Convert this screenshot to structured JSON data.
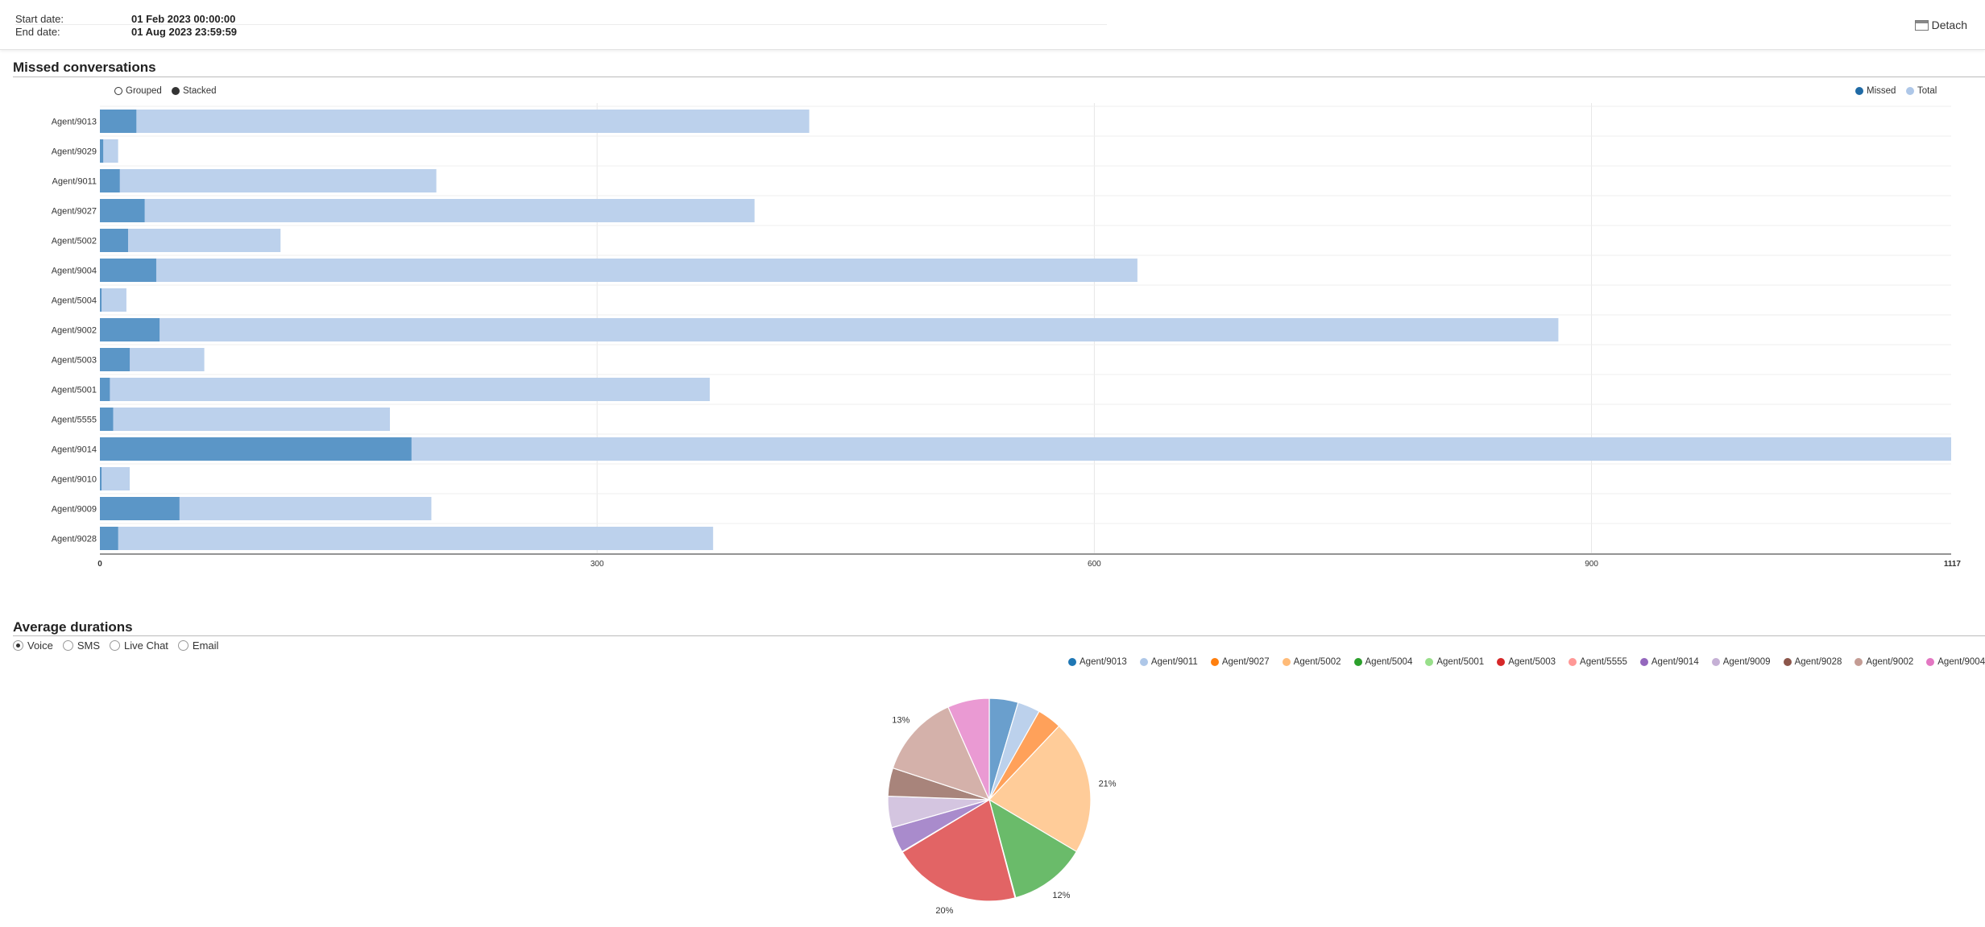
{
  "header": {
    "start_label": "Start date:",
    "start_value": "01 Feb 2023 00:00:00",
    "end_label": "End date:",
    "end_value": "01 Aug 2023 23:59:59",
    "detach_label": "Detach"
  },
  "missed": {
    "title": "Missed conversations",
    "toggles": [
      {
        "label": "Grouped",
        "selected": false
      },
      {
        "label": "Stacked",
        "selected": true
      }
    ],
    "legend": [
      {
        "label": "Missed",
        "color": "#1f6aa5"
      },
      {
        "label": "Total",
        "color": "#aec7e8"
      }
    ]
  },
  "durations": {
    "title": "Average durations",
    "options": [
      {
        "label": "Voice",
        "selected": true
      },
      {
        "label": "SMS",
        "selected": false
      },
      {
        "label": "Live Chat",
        "selected": false
      },
      {
        "label": "Email",
        "selected": false
      }
    ]
  },
  "colors": {
    "missed_bar": "#5b96c7",
    "total_bar": "#bcd1ec",
    "grid": "#e6e6e6"
  },
  "chart_data": [
    {
      "type": "bar",
      "orientation": "horizontal",
      "mode": "stacked",
      "title": "Missed conversations",
      "categories": [
        "Agent/9013",
        "Agent/9029",
        "Agent/9011",
        "Agent/9027",
        "Agent/5002",
        "Agent/9004",
        "Agent/5004",
        "Agent/9002",
        "Agent/5003",
        "Agent/5001",
        "Agent/5555",
        "Agent/9014",
        "Agent/9010",
        "Agent/9009",
        "Agent/9028"
      ],
      "series": [
        {
          "name": "Missed",
          "values": [
            22,
            2,
            12,
            27,
            17,
            34,
            1,
            36,
            18,
            6,
            8,
            188,
            1,
            48,
            11
          ]
        },
        {
          "name": "Total",
          "values": [
            428,
            11,
            203,
            395,
            109,
            626,
            16,
            880,
            63,
            368,
            175,
            1117,
            18,
            200,
            370
          ]
        }
      ],
      "xlim": [
        0,
        1117
      ],
      "xticks": [
        "0",
        "300",
        "600",
        "900",
        "1117"
      ],
      "grid": true,
      "legend_position": "top-right"
    },
    {
      "type": "pie",
      "title": "Average durations",
      "labels": [
        "Agent/9013",
        "Agent/9011",
        "Agent/9027",
        "Agent/5002",
        "Agent/5004",
        "Agent/5001",
        "Agent/5003",
        "Agent/5555",
        "Agent/9014",
        "Agent/9009",
        "Agent/9028",
        "Agent/9002",
        "Agent/9004"
      ],
      "values": [
        4.5,
        3.5,
        3.8,
        21,
        12,
        0.1,
        20,
        0.1,
        4,
        4.9,
        4.4,
        13,
        6.5
      ],
      "colors": [
        "#1f77b4",
        "#aec7e8",
        "#ff7f0e",
        "#ffbb78",
        "#2ca02c",
        "#98df8a",
        "#d62728",
        "#ff9896",
        "#9467bd",
        "#c5b0d5",
        "#8c564b",
        "#c49c94",
        "#e377c2"
      ],
      "slice_colors": [
        "#6a9fcd",
        "#bcd1ec",
        "#ffa15a",
        "#ffcc99",
        "#6abb6a",
        "#b2e6a8",
        "#e26465",
        "#ffb0ae",
        "#a98bcc",
        "#d4c5e0",
        "#a8847b",
        "#d4b1aa",
        "#ea9ad3"
      ],
      "data_labels": [
        {
          "index": 3,
          "text": "21%"
        },
        {
          "index": 4,
          "text": "12%"
        },
        {
          "index": 6,
          "text": "20%"
        },
        {
          "index": 11,
          "text": "13%"
        }
      ],
      "legend_position": "top-right"
    }
  ]
}
